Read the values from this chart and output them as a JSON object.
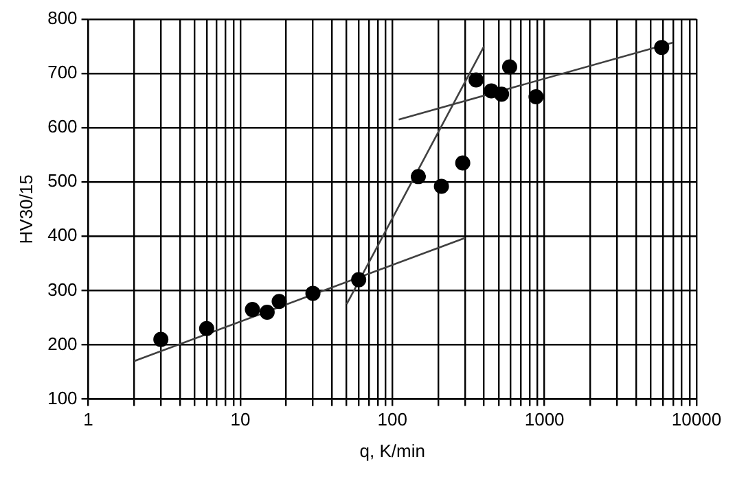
{
  "chart_data": {
    "type": "scatter",
    "xlabel": "q, K/min",
    "ylabel": "HV30/15",
    "log": "x",
    "xlim": [
      1,
      10000
    ],
    "xticks": [
      1,
      {
        "value": 2,
        "label": null
      },
      {
        "value": 3,
        "label": null
      },
      {
        "value": 4,
        "label": null
      },
      {
        "value": 5,
        "label": null
      },
      {
        "value": 6,
        "label": null
      },
      {
        "value": 7,
        "label": null
      },
      {
        "value": 8,
        "label": null
      },
      {
        "value": 9,
        "label": null
      },
      10,
      {
        "value": 20,
        "label": null
      },
      {
        "value": 30,
        "label": null
      },
      {
        "value": 40,
        "label": null
      },
      {
        "value": 50,
        "label": null
      },
      {
        "value": 60,
        "label": null
      },
      {
        "value": 70,
        "label": null
      },
      {
        "value": 80,
        "label": null
      },
      {
        "value": 90,
        "label": null
      },
      100,
      {
        "value": 200,
        "label": null
      },
      {
        "value": 300,
        "label": null
      },
      {
        "value": 400,
        "label": null
      },
      {
        "value": 500,
        "label": null
      },
      {
        "value": 600,
        "label": null
      },
      {
        "value": 700,
        "label": null
      },
      {
        "value": 800,
        "label": null
      },
      {
        "value": 900,
        "label": null
      },
      1000,
      {
        "value": 2000,
        "label": null
      },
      {
        "value": 3000,
        "label": null
      },
      {
        "value": 4000,
        "label": null
      },
      {
        "value": 5000,
        "label": null
      },
      {
        "value": 6000,
        "label": null
      },
      {
        "value": 7000,
        "label": null
      },
      {
        "value": 8000,
        "label": null
      },
      {
        "value": 9000,
        "label": null
      },
      10000
    ],
    "ylim": [
      100,
      800
    ],
    "yticks": [
      100,
      200,
      300,
      400,
      500,
      600,
      700,
      800
    ],
    "grid": true,
    "legend": false,
    "series": [
      {
        "type": "scatter",
        "marker": "circle",
        "color": "#000000",
        "x": [
          3,
          6,
          12,
          15,
          18,
          30,
          60,
          148,
          210,
          290,
          355,
          447,
          522,
          590,
          880,
          5900
        ],
        "values": [
          210,
          230,
          265,
          260,
          280,
          295,
          320,
          510,
          492,
          535,
          688,
          668,
          662,
          712,
          657,
          748
        ]
      },
      {
        "type": "line",
        "marker": "none",
        "color": "#404040",
        "x": [
          2,
          300
        ],
        "values": [
          170,
          397
        ]
      },
      {
        "type": "line",
        "marker": "none",
        "color": "#404040",
        "x": [
          50,
          400
        ],
        "values": [
          275,
          750
        ]
      },
      {
        "type": "line",
        "marker": "none",
        "color": "#404040",
        "x": [
          110,
          7000
        ],
        "values": [
          615,
          757
        ]
      }
    ]
  }
}
